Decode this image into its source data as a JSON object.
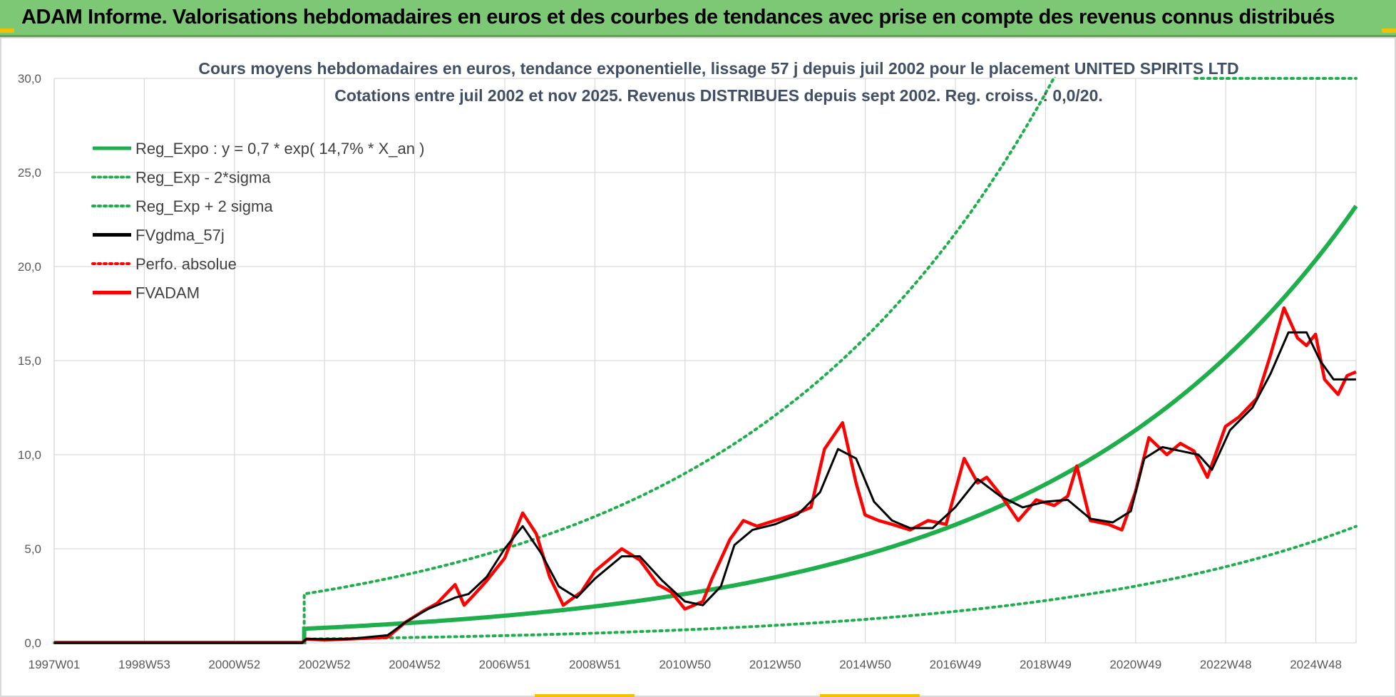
{
  "header": {
    "title": "ADAM Informe. Valorisations hebdomadaires en euros et des courbes de tendances avec prise en compte des revenus connus distribués"
  },
  "colors": {
    "banner": "#7dc875",
    "reg_green": "#1fae4c",
    "dotted_green": "#1fae4c",
    "black": "#000000",
    "red": "#ff0000",
    "grid": "#d9d9d9"
  },
  "chart_data": {
    "type": "line",
    "title_line1": "Cours moyens hebdomadaires en euros, tendance exponentielle, lissage 57 j depuis juil 2002 pour le placement UNITED SPIRITS LTD",
    "title_line2": "Cotations entre juil 2002 et nov 2025. Revenus DISTRIBUES depuis sept 2002. Reg. croiss. : 0,0/20.",
    "x_range": [
      1997.0,
      2025.9
    ],
    "ylim": [
      0,
      30
    ],
    "y_ticks": [
      "0,0",
      "5,0",
      "10,0",
      "15,0",
      "20,0",
      "25,0",
      "30,0"
    ],
    "x_tick_labels": [
      "1997W01",
      "1998W53",
      "2000W52",
      "2002W52",
      "2004W52",
      "2006W51",
      "2008W51",
      "2010W50",
      "2012W50",
      "2014W50",
      "2016W49",
      "2018W49",
      "2020W49",
      "2022W48",
      "2024W48"
    ],
    "legend_position": "top-left",
    "legend": [
      {
        "label": "Reg_Expo : y = 0,7 * exp( 14,7% *  X_an )",
        "color": "#1fae4c",
        "style": "solid"
      },
      {
        "label": "Reg_Exp - 2*sigma",
        "color": "#1fae4c",
        "style": "dotted"
      },
      {
        "label": "Reg_Exp + 2 sigma",
        "color": "#1fae4c",
        "style": "dotted"
      },
      {
        "label": "FVgdma_57j",
        "color": "#000000",
        "style": "solid"
      },
      {
        "label": "Perfo. absolue",
        "color": "#ff0000",
        "style": "dotted"
      },
      {
        "label": "FVADAM",
        "color": "#ff0000",
        "style": "solid"
      }
    ],
    "series": [
      {
        "name": "FVADAM",
        "x": [
          1997.0,
          2002.5,
          2002.6,
          2003.0,
          2003.5,
          2004.0,
          2004.4,
          2004.8,
          2005.2,
          2005.5,
          2005.9,
          2006.1,
          2006.3,
          2006.6,
          2007.0,
          2007.4,
          2007.7,
          2008.0,
          2008.3,
          2008.7,
          2009.0,
          2009.3,
          2009.6,
          2010.0,
          2010.4,
          2010.7,
          2011.0,
          2011.4,
          2011.6,
          2012.0,
          2012.3,
          2012.6,
          2013.0,
          2013.4,
          2013.8,
          2014.1,
          2014.5,
          2014.8,
          2015.0,
          2015.3,
          2015.6,
          2016.0,
          2016.4,
          2016.8,
          2017.2,
          2017.5,
          2017.7,
          2018.0,
          2018.4,
          2018.8,
          2019.2,
          2019.5,
          2019.7,
          2020.0,
          2020.4,
          2020.7,
          2021.0,
          2021.3,
          2021.7,
          2022.0,
          2022.3,
          2022.6,
          2023.0,
          2023.3,
          2023.7,
          2024.0,
          2024.3,
          2024.6,
          2024.8,
          2025.0,
          2025.2,
          2025.5,
          2025.7,
          2025.9
        ],
        "values": [
          0.0,
          0.0,
          0.2,
          0.15,
          0.2,
          0.25,
          0.3,
          1.1,
          1.7,
          2.1,
          3.1,
          2.0,
          2.5,
          3.3,
          4.5,
          6.9,
          5.8,
          3.5,
          2.0,
          2.7,
          3.8,
          4.4,
          5.0,
          4.4,
          3.1,
          2.7,
          1.8,
          2.2,
          3.4,
          5.5,
          6.5,
          6.2,
          6.5,
          6.8,
          7.2,
          10.3,
          11.7,
          8.5,
          6.8,
          6.5,
          6.3,
          6.0,
          6.5,
          6.3,
          9.8,
          8.5,
          8.8,
          7.9,
          6.5,
          7.6,
          7.3,
          7.8,
          9.4,
          6.5,
          6.3,
          6.0,
          8.0,
          10.9,
          10.0,
          10.6,
          10.2,
          8.8,
          11.5,
          12.0,
          13.0,
          15.3,
          17.8,
          16.2,
          15.8,
          16.4,
          14.0,
          13.2,
          14.2,
          14.4
        ]
      },
      {
        "name": "FVgdma_57j",
        "x": [
          1997.0,
          2002.5,
          2002.6,
          2003.5,
          2004.4,
          2004.8,
          2005.3,
          2005.9,
          2006.2,
          2006.6,
          2007.0,
          2007.4,
          2007.8,
          2008.2,
          2008.6,
          2009.0,
          2009.6,
          2010.0,
          2010.5,
          2011.0,
          2011.4,
          2011.8,
          2012.1,
          2012.5,
          2013.0,
          2013.5,
          2014.0,
          2014.4,
          2014.8,
          2015.2,
          2015.6,
          2016.0,
          2016.5,
          2017.0,
          2017.5,
          2018.0,
          2018.5,
          2019.0,
          2019.5,
          2020.0,
          2020.5,
          2020.9,
          2021.2,
          2021.6,
          2022.0,
          2022.4,
          2022.7,
          2023.1,
          2023.6,
          2024.0,
          2024.4,
          2024.8,
          2025.1,
          2025.4,
          2025.9
        ],
        "values": [
          0.0,
          0.0,
          0.2,
          0.2,
          0.4,
          1.1,
          1.8,
          2.4,
          2.6,
          3.5,
          5.0,
          6.2,
          4.8,
          3.0,
          2.4,
          3.4,
          4.6,
          4.6,
          3.3,
          2.2,
          2.0,
          3.0,
          5.2,
          6.0,
          6.3,
          6.8,
          8.0,
          10.3,
          9.8,
          7.5,
          6.5,
          6.1,
          6.1,
          7.2,
          8.7,
          7.8,
          7.2,
          7.5,
          7.6,
          6.6,
          6.4,
          7.0,
          9.8,
          10.4,
          10.2,
          10.0,
          9.2,
          11.3,
          12.5,
          14.3,
          16.5,
          16.5,
          15.0,
          14.0,
          14.0
        ]
      }
    ]
  }
}
